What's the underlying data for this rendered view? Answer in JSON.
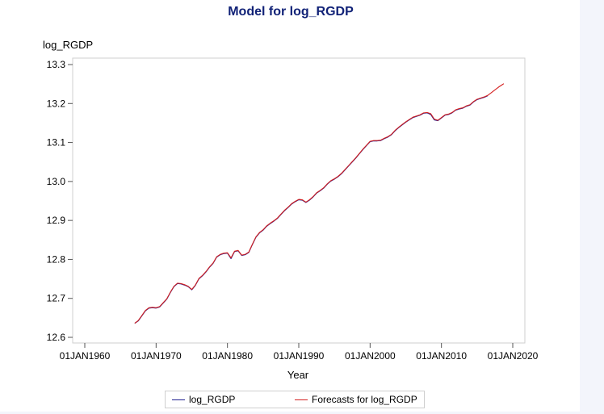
{
  "title": "Model for log_RGDP",
  "chart_data": {
    "type": "line",
    "title": "Model for log_RGDP",
    "xlabel": "Year",
    "ylabel": "log_RGDP",
    "xlim": [
      "1960-01-01",
      "2020-01-01"
    ],
    "ylim": [
      12.6,
      13.3
    ],
    "x_ticks": [
      "01JAN1960",
      "01JAN1970",
      "01JAN1980",
      "01JAN1990",
      "01JAN2000",
      "01JAN2010",
      "01JAN2020"
    ],
    "y_ticks": [
      "12.6",
      "12.7",
      "12.8",
      "12.9",
      "13.0",
      "13.1",
      "13.2",
      "13.3"
    ],
    "legend_position": "bottom",
    "grid": false,
    "series": [
      {
        "name": "log_RGDP",
        "color": "#1f1f8f",
        "points": [
          [
            "1967-01-01",
            12.636
          ],
          [
            "1967-07-01",
            12.642
          ],
          [
            "1968-01-01",
            12.655
          ],
          [
            "1968-07-01",
            12.668
          ],
          [
            "1969-01-01",
            12.675
          ],
          [
            "1969-07-01",
            12.676
          ],
          [
            "1970-01-01",
            12.675
          ],
          [
            "1970-07-01",
            12.678
          ],
          [
            "1971-01-01",
            12.688
          ],
          [
            "1971-07-01",
            12.698
          ],
          [
            "1972-01-01",
            12.715
          ],
          [
            "1972-07-01",
            12.73
          ],
          [
            "1973-01-01",
            12.738
          ],
          [
            "1973-07-01",
            12.737
          ],
          [
            "1974-01-01",
            12.734
          ],
          [
            "1974-07-01",
            12.73
          ],
          [
            "1975-01-01",
            12.722
          ],
          [
            "1975-07-01",
            12.733
          ],
          [
            "1976-01-01",
            12.75
          ],
          [
            "1976-07-01",
            12.758
          ],
          [
            "1977-01-01",
            12.768
          ],
          [
            "1977-07-01",
            12.78
          ],
          [
            "1978-01-01",
            12.79
          ],
          [
            "1978-07-01",
            12.806
          ],
          [
            "1979-01-01",
            12.812
          ],
          [
            "1979-07-01",
            12.815
          ],
          [
            "1980-01-01",
            12.816
          ],
          [
            "1980-07-01",
            12.802
          ],
          [
            "1981-01-01",
            12.82
          ],
          [
            "1981-07-01",
            12.822
          ],
          [
            "1982-01-01",
            12.81
          ],
          [
            "1982-07-01",
            12.812
          ],
          [
            "1983-01-01",
            12.818
          ],
          [
            "1983-07-01",
            12.838
          ],
          [
            "1984-01-01",
            12.857
          ],
          [
            "1984-07-01",
            12.868
          ],
          [
            "1985-01-01",
            12.875
          ],
          [
            "1985-07-01",
            12.885
          ],
          [
            "1986-01-01",
            12.892
          ],
          [
            "1986-07-01",
            12.898
          ],
          [
            "1987-01-01",
            12.905
          ],
          [
            "1987-07-01",
            12.915
          ],
          [
            "1988-01-01",
            12.925
          ],
          [
            "1988-07-01",
            12.933
          ],
          [
            "1989-01-01",
            12.942
          ],
          [
            "1989-07-01",
            12.948
          ],
          [
            "1990-01-01",
            12.953
          ],
          [
            "1990-07-01",
            12.952
          ],
          [
            "1991-01-01",
            12.946
          ],
          [
            "1991-07-01",
            12.952
          ],
          [
            "1992-01-01",
            12.96
          ],
          [
            "1992-07-01",
            12.97
          ],
          [
            "1993-01-01",
            12.976
          ],
          [
            "1993-07-01",
            12.983
          ],
          [
            "1994-01-01",
            12.993
          ],
          [
            "1994-07-01",
            13.001
          ],
          [
            "1995-01-01",
            13.006
          ],
          [
            "1995-07-01",
            13.012
          ],
          [
            "1996-01-01",
            13.02
          ],
          [
            "1996-07-01",
            13.03
          ],
          [
            "1997-01-01",
            13.04
          ],
          [
            "1997-07-01",
            13.05
          ],
          [
            "1998-01-01",
            13.06
          ],
          [
            "1998-07-01",
            13.071
          ],
          [
            "1999-01-01",
            13.082
          ],
          [
            "1999-07-01",
            13.092
          ],
          [
            "2000-01-01",
            13.102
          ],
          [
            "2000-07-01",
            13.104
          ],
          [
            "2001-01-01",
            13.104
          ],
          [
            "2001-07-01",
            13.105
          ],
          [
            "2002-01-01",
            13.11
          ],
          [
            "2002-07-01",
            13.114
          ],
          [
            "2003-01-01",
            13.12
          ],
          [
            "2003-07-01",
            13.13
          ],
          [
            "2004-01-01",
            13.138
          ],
          [
            "2004-07-01",
            13.145
          ],
          [
            "2005-01-01",
            13.152
          ],
          [
            "2005-07-01",
            13.158
          ],
          [
            "2006-01-01",
            13.164
          ],
          [
            "2006-07-01",
            13.167
          ],
          [
            "2007-01-01",
            13.17
          ],
          [
            "2007-07-01",
            13.175
          ],
          [
            "2008-01-01",
            13.176
          ],
          [
            "2008-07-01",
            13.172
          ],
          [
            "2009-01-01",
            13.158
          ],
          [
            "2009-07-01",
            13.156
          ],
          [
            "2010-01-01",
            13.163
          ],
          [
            "2010-07-01",
            13.17
          ],
          [
            "2011-01-01",
            13.172
          ],
          [
            "2011-07-01",
            13.176
          ],
          [
            "2012-01-01",
            13.183
          ],
          [
            "2012-07-01",
            13.186
          ],
          [
            "2013-01-01",
            13.188
          ],
          [
            "2013-07-01",
            13.193
          ],
          [
            "2014-01-01",
            13.196
          ],
          [
            "2014-07-01",
            13.204
          ],
          [
            "2015-01-01",
            13.21
          ],
          [
            "2015-07-01",
            13.213
          ],
          [
            "2016-01-01",
            13.216
          ],
          [
            "2016-07-01",
            13.22
          ]
        ]
      },
      {
        "name": "Forecasts for log_RGDP",
        "color": "#d42020",
        "points": [
          [
            "1967-01-01",
            12.636
          ],
          [
            "1967-07-01",
            12.643
          ],
          [
            "1968-01-01",
            12.656
          ],
          [
            "1968-07-01",
            12.669
          ],
          [
            "1969-01-01",
            12.676
          ],
          [
            "1969-07-01",
            12.677
          ],
          [
            "1970-01-01",
            12.676
          ],
          [
            "1970-07-01",
            12.679
          ],
          [
            "1971-01-01",
            12.689
          ],
          [
            "1971-07-01",
            12.699
          ],
          [
            "1972-01-01",
            12.716
          ],
          [
            "1972-07-01",
            12.731
          ],
          [
            "1973-01-01",
            12.739
          ],
          [
            "1973-07-01",
            12.738
          ],
          [
            "1974-01-01",
            12.735
          ],
          [
            "1974-07-01",
            12.731
          ],
          [
            "1975-01-01",
            12.723
          ],
          [
            "1975-07-01",
            12.734
          ],
          [
            "1976-01-01",
            12.751
          ],
          [
            "1976-07-01",
            12.759
          ],
          [
            "1977-01-01",
            12.769
          ],
          [
            "1977-07-01",
            12.781
          ],
          [
            "1978-01-01",
            12.791
          ],
          [
            "1978-07-01",
            12.807
          ],
          [
            "1979-01-01",
            12.813
          ],
          [
            "1979-07-01",
            12.816
          ],
          [
            "1980-01-01",
            12.817
          ],
          [
            "1980-07-01",
            12.804
          ],
          [
            "1981-01-01",
            12.821
          ],
          [
            "1981-07-01",
            12.823
          ],
          [
            "1982-01-01",
            12.811
          ],
          [
            "1982-07-01",
            12.813
          ],
          [
            "1983-01-01",
            12.819
          ],
          [
            "1983-07-01",
            12.839
          ],
          [
            "1984-01-01",
            12.858
          ],
          [
            "1984-07-01",
            12.869
          ],
          [
            "1985-01-01",
            12.876
          ],
          [
            "1985-07-01",
            12.886
          ],
          [
            "1986-01-01",
            12.893
          ],
          [
            "1986-07-01",
            12.899
          ],
          [
            "1987-01-01",
            12.906
          ],
          [
            "1987-07-01",
            12.916
          ],
          [
            "1988-01-01",
            12.926
          ],
          [
            "1988-07-01",
            12.934
          ],
          [
            "1989-01-01",
            12.943
          ],
          [
            "1989-07-01",
            12.949
          ],
          [
            "1990-01-01",
            12.954
          ],
          [
            "1990-07-01",
            12.953
          ],
          [
            "1991-01-01",
            12.947
          ],
          [
            "1991-07-01",
            12.953
          ],
          [
            "1992-01-01",
            12.961
          ],
          [
            "1992-07-01",
            12.971
          ],
          [
            "1993-01-01",
            12.977
          ],
          [
            "1993-07-01",
            12.984
          ],
          [
            "1994-01-01",
            12.994
          ],
          [
            "1994-07-01",
            13.002
          ],
          [
            "1995-01-01",
            13.007
          ],
          [
            "1995-07-01",
            13.013
          ],
          [
            "1996-01-01",
            13.021
          ],
          [
            "1996-07-01",
            13.031
          ],
          [
            "1997-01-01",
            13.041
          ],
          [
            "1997-07-01",
            13.051
          ],
          [
            "1998-01-01",
            13.061
          ],
          [
            "1998-07-01",
            13.072
          ],
          [
            "1999-01-01",
            13.083
          ],
          [
            "1999-07-01",
            13.093
          ],
          [
            "2000-01-01",
            13.103
          ],
          [
            "2000-07-01",
            13.105
          ],
          [
            "2001-01-01",
            13.105
          ],
          [
            "2001-07-01",
            13.106
          ],
          [
            "2002-01-01",
            13.111
          ],
          [
            "2002-07-01",
            13.115
          ],
          [
            "2003-01-01",
            13.121
          ],
          [
            "2003-07-01",
            13.131
          ],
          [
            "2004-01-01",
            13.139
          ],
          [
            "2004-07-01",
            13.146
          ],
          [
            "2005-01-01",
            13.153
          ],
          [
            "2005-07-01",
            13.159
          ],
          [
            "2006-01-01",
            13.165
          ],
          [
            "2006-07-01",
            13.168
          ],
          [
            "2007-01-01",
            13.171
          ],
          [
            "2007-07-01",
            13.176
          ],
          [
            "2008-01-01",
            13.177
          ],
          [
            "2008-07-01",
            13.174
          ],
          [
            "2009-01-01",
            13.16
          ],
          [
            "2009-07-01",
            13.157
          ],
          [
            "2010-01-01",
            13.164
          ],
          [
            "2010-07-01",
            13.171
          ],
          [
            "2011-01-01",
            13.173
          ],
          [
            "2011-07-01",
            13.177
          ],
          [
            "2012-01-01",
            13.184
          ],
          [
            "2012-07-01",
            13.187
          ],
          [
            "2013-01-01",
            13.189
          ],
          [
            "2013-07-01",
            13.194
          ],
          [
            "2014-01-01",
            13.197
          ],
          [
            "2014-07-01",
            13.205
          ],
          [
            "2015-01-01",
            13.211
          ],
          [
            "2015-07-01",
            13.214
          ],
          [
            "2016-01-01",
            13.217
          ],
          [
            "2016-07-01",
            13.221
          ],
          [
            "2017-01-01",
            13.228
          ],
          [
            "2017-07-01",
            13.235
          ],
          [
            "2018-01-01",
            13.242
          ],
          [
            "2018-07-01",
            13.248
          ],
          [
            "2018-10-01",
            13.251
          ]
        ]
      }
    ]
  }
}
